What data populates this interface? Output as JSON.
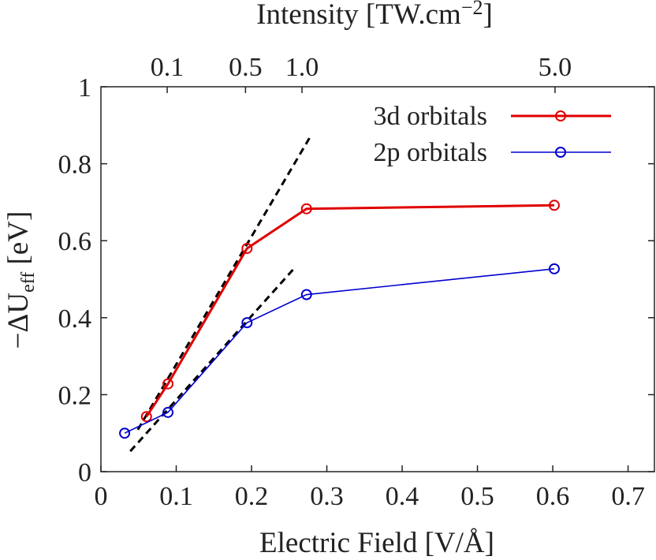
{
  "chart_data": {
    "type": "line",
    "xlabel": "Electric Field [V/Å]",
    "ylabel": [
      "−ΔU",
      "eff",
      " [eV]"
    ],
    "x2label": [
      "Intensity [TW.cm",
      "−2",
      "]"
    ],
    "xlim": [
      0,
      0.735
    ],
    "ylim": [
      0,
      1
    ],
    "xticks": [
      0,
      0.1,
      0.2,
      0.3,
      0.4,
      0.5,
      0.6,
      0.7
    ],
    "yticks": [
      0,
      0.2,
      0.4,
      0.6,
      0.8,
      1
    ],
    "x2ticks": [
      {
        "value": 0.088,
        "label": "0.1"
      },
      {
        "value": 0.192,
        "label": "0.5"
      },
      {
        "value": 0.267,
        "label": "1.0"
      },
      {
        "value": 0.603,
        "label": "5.0"
      }
    ],
    "legend": "upper right",
    "series": [
      {
        "name": "3d orbitals",
        "color": "#e00000",
        "x": [
          0.0605,
          0.089,
          0.194,
          0.273,
          0.602
        ],
        "values": [
          0.143,
          0.228,
          0.58,
          0.683,
          0.692
        ]
      },
      {
        "name": "2p orbitals",
        "color": "#0000d0",
        "x": [
          0.0315,
          0.089,
          0.194,
          0.273,
          0.602
        ],
        "values": [
          0.1,
          0.154,
          0.387,
          0.46,
          0.527
        ]
      }
    ],
    "reference_lines": [
      {
        "color": "#000000",
        "x": [
          0.049,
          0.277
        ],
        "values": [
          0.109,
          0.867
        ]
      },
      {
        "color": "#000000",
        "x": [
          0.039,
          0.257
        ],
        "values": [
          0.053,
          0.529
        ]
      }
    ]
  }
}
